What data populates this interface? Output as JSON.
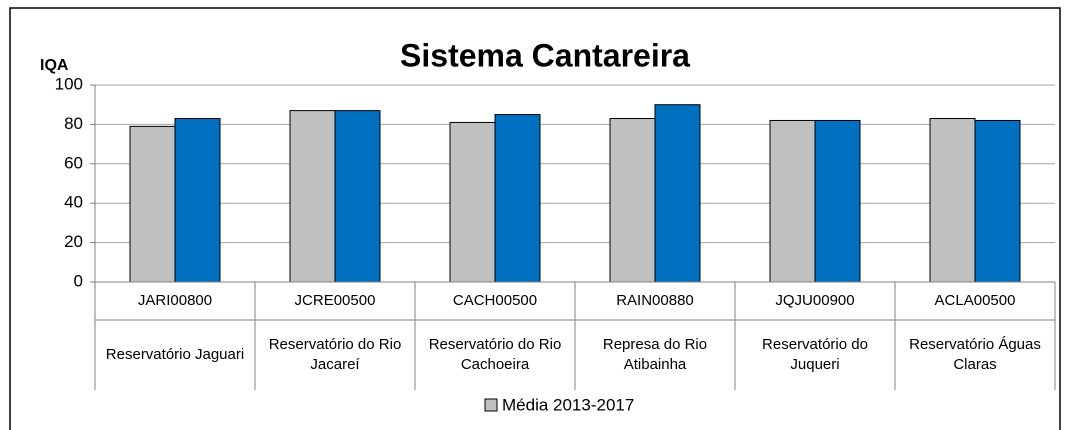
{
  "chart_data": {
    "type": "bar",
    "title": "Sistema Cantareira",
    "y_label": "IQA",
    "categories": [
      "JARI00800",
      "JCRE00500",
      "CACH00500",
      "RAIN00880",
      "JQJU00900",
      "ACLA00500"
    ],
    "subcategories": [
      "Reservatório Jaguari",
      "Reservatório do Rio Jacareí",
      "Reservatório do Rio Cachoeira",
      "Represa do Rio Atibainha",
      "Reservatório do Juqueri",
      "Reservatório Águas Claras"
    ],
    "series": [
      {
        "name": "Média 2013-2017",
        "color": "#c0c0c0",
        "values": [
          79,
          87,
          81,
          83,
          82,
          83
        ]
      },
      {
        "color": "#0070c0",
        "values": [
          83,
          87,
          85,
          90,
          82,
          82
        ]
      }
    ],
    "ylim": [
      0,
      100
    ],
    "yticks": [
      0,
      20,
      40,
      60,
      80,
      100
    ],
    "grid": true,
    "legend": "bottom"
  }
}
